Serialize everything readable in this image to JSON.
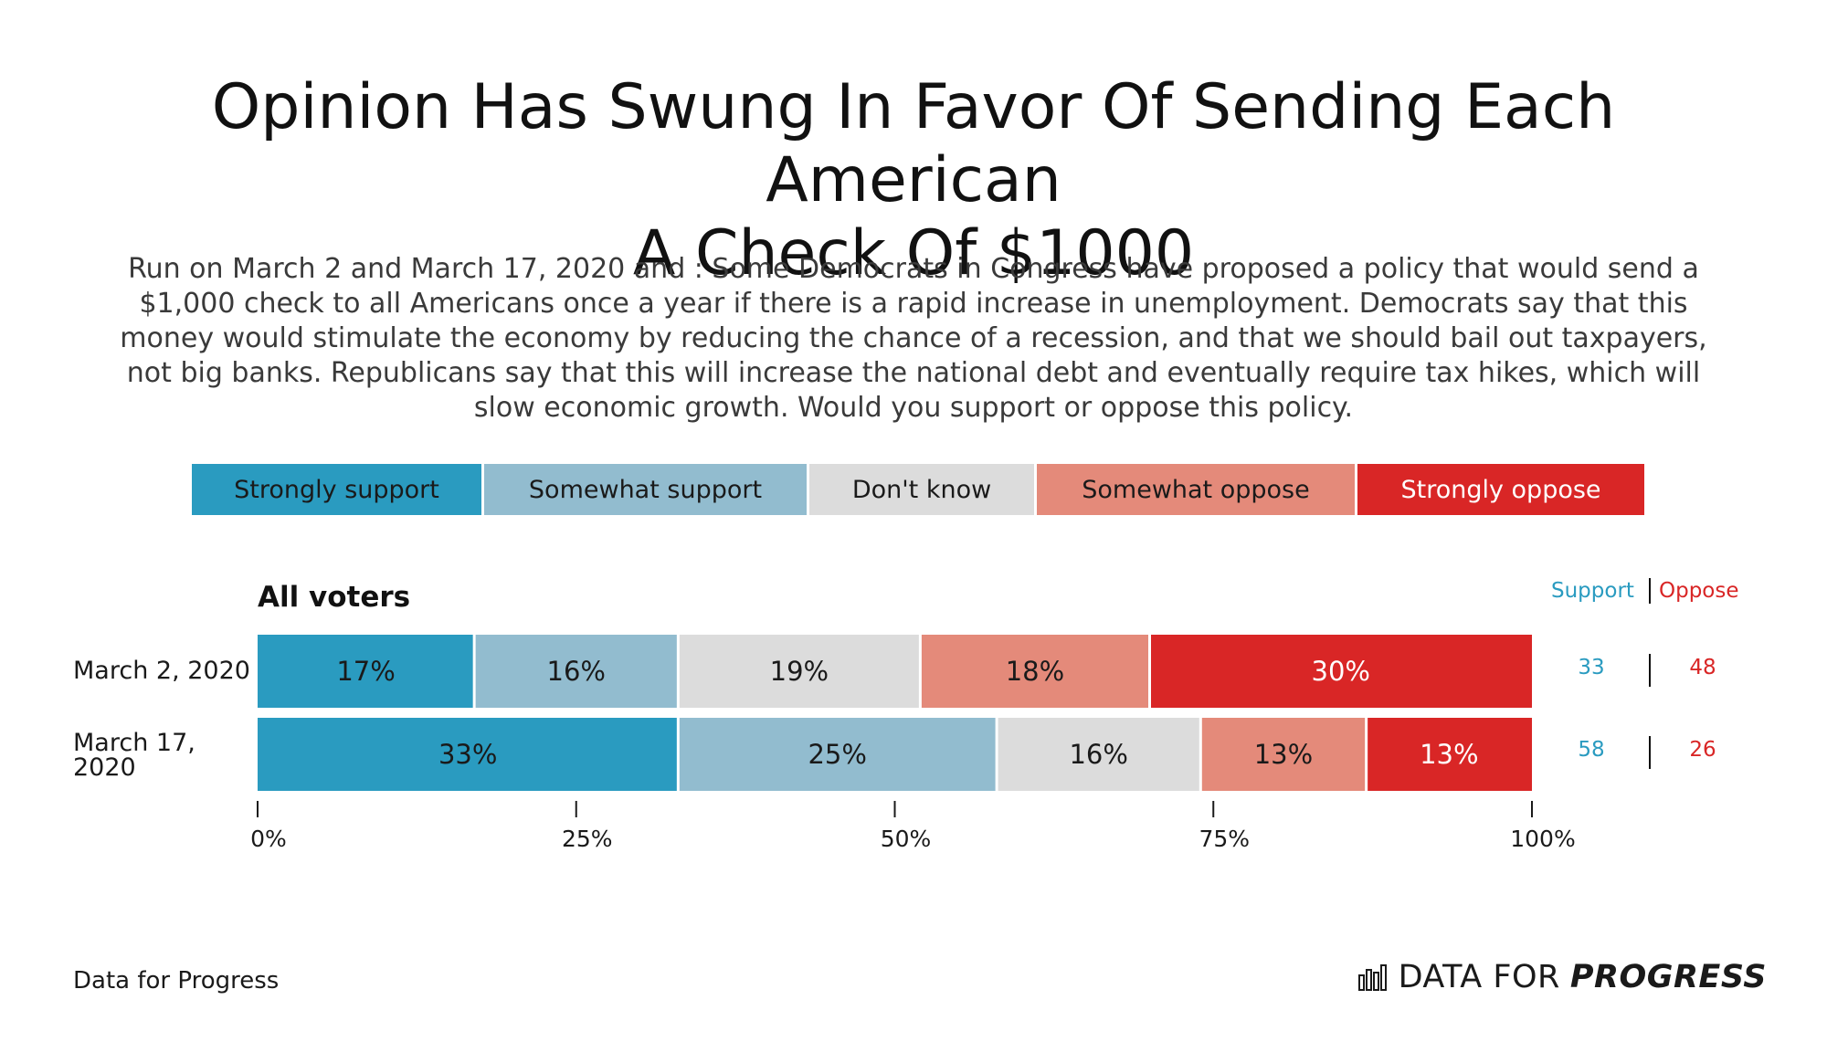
{
  "title_line1": "Opinion Has Swung In Favor Of Sending Each American",
  "title_line2": "A Check Of $1000",
  "subtitle_lines": [
    "Run on March 2 and March 17, 2020 and : Some Democrats in Congress have proposed a policy that would send a",
    "$1,000 check to all Americans once a year if there is a rapid increase in unemployment. Democrats say that this",
    "money would stimulate the economy by reducing the chance of a recession, and that we should bail out taxpayers,",
    "not big banks. Republicans say that this will increase the national debt and eventually require tax hikes, which will",
    "slow economic growth. Would you support or oppose this policy."
  ],
  "legend": [
    {
      "label": "Strongly support",
      "color": "#2a9bc0",
      "text_color": "#1a1a1a"
    },
    {
      "label": "Somewhat support",
      "color": "#92bccf",
      "text_color": "#1a1a1a"
    },
    {
      "label": "Don't know",
      "color": "#dcdcdc",
      "text_color": "#1a1a1a"
    },
    {
      "label": "Somewhat oppose",
      "color": "#e48a7a",
      "text_color": "#1a1a1a"
    },
    {
      "label": "Strongly oppose",
      "color": "#d92626",
      "text_color": "#ffffff"
    }
  ],
  "group_title": "All voters",
  "net_header": {
    "support": "Support",
    "oppose": "Oppose",
    "support_color": "#2a9bc0",
    "oppose_color": "#d92626"
  },
  "row_labels": {
    "row1": "March 2, 2020",
    "row2_line1": "March 17,",
    "row2_line2": "2020"
  },
  "footer": {
    "source": "Data for Progress",
    "logo_light": "DATA FOR",
    "logo_bold": "PROGRESS"
  },
  "chart_data": {
    "type": "bar",
    "orientation": "horizontal",
    "stacked": true,
    "categories": [
      "March 2, 2020",
      "March 17, 2020"
    ],
    "series": [
      {
        "name": "Strongly support",
        "values": [
          17,
          33
        ],
        "labels": [
          "17%",
          "33%"
        ],
        "color": "#2a9bc0"
      },
      {
        "name": "Somewhat support",
        "values": [
          16,
          25
        ],
        "labels": [
          "16%",
          "25%"
        ],
        "color": "#92bccf"
      },
      {
        "name": "Don't know",
        "values": [
          19,
          16
        ],
        "labels": [
          "19%",
          "16%"
        ],
        "color": "#dcdcdc"
      },
      {
        "name": "Somewhat oppose",
        "values": [
          18,
          13
        ],
        "labels": [
          "18%",
          "13%"
        ],
        "color": "#e48a7a"
      },
      {
        "name": "Strongly oppose",
        "values": [
          30,
          13
        ],
        "labels": [
          "30%",
          "13%"
        ],
        "color": "#d92626"
      }
    ],
    "net": {
      "support": [
        "33",
        "58"
      ],
      "oppose": [
        "48",
        "26"
      ]
    },
    "xlim": [
      0,
      100
    ],
    "xticks": [
      0,
      25,
      50,
      75,
      100
    ],
    "xtick_labels": [
      "0%",
      "25%",
      "50%",
      "75%",
      "100%"
    ],
    "legend_position": "top",
    "grid": false
  }
}
